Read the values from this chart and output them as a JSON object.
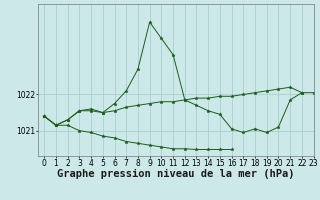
{
  "title": "Graphe pression niveau de la mer (hPa)",
  "bg_color": "#cce8e8",
  "grid_color": "#aacfcf",
  "line_color": "#1a5e1a",
  "xlim": [
    -0.5,
    23
  ],
  "ylim": [
    1020.3,
    1024.5
  ],
  "yticks": [
    1021,
    1022
  ],
  "xticks": [
    0,
    1,
    2,
    3,
    4,
    5,
    6,
    7,
    8,
    9,
    10,
    11,
    12,
    13,
    14,
    15,
    16,
    17,
    18,
    19,
    20,
    21,
    22,
    23
  ],
  "series": [
    [
      1021.4,
      1021.15,
      1021.3,
      1021.55,
      1021.6,
      1021.5,
      1021.75,
      1022.1,
      1022.7,
      1024.0,
      1023.55,
      1023.1,
      1021.85,
      1021.7,
      1021.55,
      1021.45,
      1021.05,
      1020.95,
      1021.05,
      1020.95,
      1021.1,
      1021.85,
      1022.05,
      1022.05
    ],
    [
      1021.4,
      1021.15,
      1021.3,
      1021.55,
      1021.55,
      1021.5,
      1021.55,
      1021.65,
      1021.7,
      1021.75,
      1021.8,
      1021.8,
      1021.85,
      1021.9,
      1021.9,
      1021.95,
      1021.95,
      1022.0,
      1022.05,
      1022.1,
      1022.15,
      1022.2,
      1022.05,
      null
    ],
    [
      1021.4,
      1021.15,
      1021.15,
      1021.0,
      1020.95,
      1020.85,
      1020.8,
      1020.7,
      1020.65,
      1020.6,
      1020.55,
      1020.5,
      1020.5,
      1020.48,
      1020.48,
      1020.48,
      1020.48,
      null,
      null,
      null,
      null,
      null,
      null,
      null
    ]
  ],
  "font_family": "monospace",
  "title_fontsize": 7.5,
  "tick_fontsize": 5.5,
  "figwidth": 3.2,
  "figheight": 2.0,
  "dpi": 100
}
